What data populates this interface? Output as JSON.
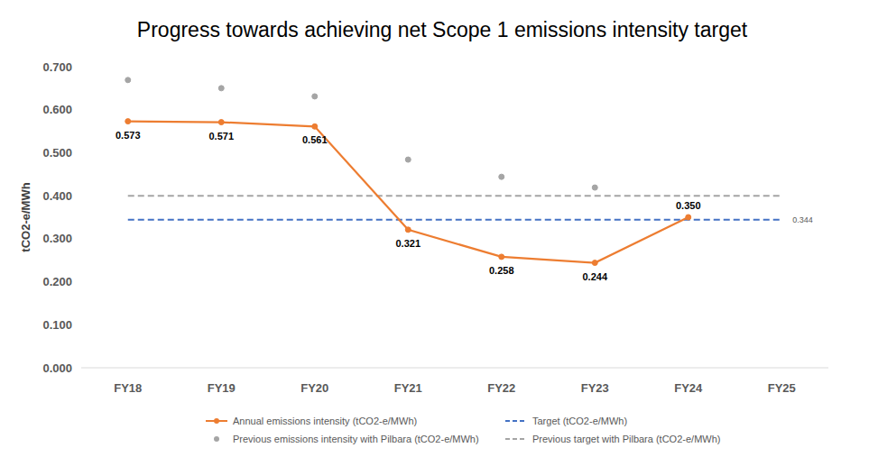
{
  "chart_data": {
    "type": "line",
    "title": "Progress towards achieving net Scope 1 emissions intensity target",
    "y_label": "tCO2-e/MWh",
    "categories": [
      "FY18",
      "FY19",
      "FY20",
      "FY21",
      "FY22",
      "FY23",
      "FY24",
      "FY25"
    ],
    "ylim": [
      0,
      0.7
    ],
    "yticks": [
      {
        "value": 0,
        "label": "0.000"
      },
      {
        "value": 0.1,
        "label": "0.100"
      },
      {
        "value": 0.2,
        "label": "0.200"
      },
      {
        "value": 0.3,
        "label": "0.300"
      },
      {
        "value": 0.4,
        "label": "0.400"
      },
      {
        "value": 0.5,
        "label": "0.500"
      },
      {
        "value": 0.6,
        "label": "0.600"
      },
      {
        "value": 0.7,
        "label": "0.700"
      }
    ],
    "grid": false,
    "legend": "bottom",
    "series": [
      {
        "name": "Annual emissions intensity (tCO2-e/MWh)",
        "type": "line",
        "color": "#ED7D31",
        "marker": "circle",
        "line_style": "solid",
        "data_labels": true,
        "values": [
          0.573,
          0.571,
          0.561,
          0.321,
          0.258,
          0.244,
          0.35,
          null
        ],
        "value_labels": [
          "0.573",
          "0.571",
          "0.561",
          "0.321",
          "0.258",
          "0.244",
          "0.350",
          null
        ]
      },
      {
        "name": "Target (tCO2-e/MWh)",
        "type": "line",
        "color": "#4472C4",
        "marker": "none",
        "line_style": "dashed",
        "data_labels": true,
        "values": [
          0.344,
          0.344,
          0.344,
          0.344,
          0.344,
          0.344,
          0.344,
          0.344
        ],
        "value_labels": [
          null,
          null,
          null,
          null,
          null,
          null,
          null,
          "0.344"
        ]
      },
      {
        "name": "Previous emissions intensity with Pilbara (tCO2-e/MWh)",
        "type": "scatter",
        "color": "#A5A5A5",
        "marker": "circle",
        "line_style": "none",
        "values": [
          0.669,
          0.65,
          0.631,
          0.484,
          0.444,
          0.419,
          null,
          null
        ]
      },
      {
        "name": "Previous target with Pilbara (tCO2-e/MWh)",
        "type": "line",
        "color": "#A5A5A5",
        "marker": "none",
        "line_style": "dashed",
        "values": [
          0.4,
          0.4,
          0.4,
          0.4,
          0.4,
          0.4,
          0.4,
          0.4
        ]
      }
    ]
  }
}
